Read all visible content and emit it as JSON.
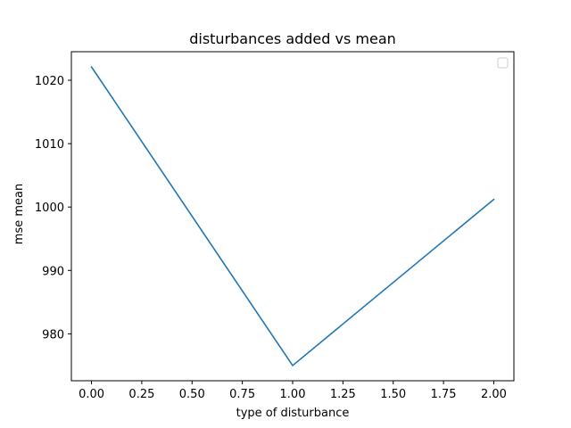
{
  "chart_data": {
    "type": "line",
    "title": "disturbances added vs mean",
    "xlabel": "type of disturbance",
    "ylabel": "mse mean",
    "x": [
      0.0,
      1.0,
      2.0
    ],
    "series": [
      {
        "values": [
          1022.1,
          975.0,
          1001.2
        ],
        "color": "#1f77b4"
      }
    ],
    "xlim": [
      -0.1,
      2.1
    ],
    "ylim": [
      972.6,
      1024.5
    ],
    "xticks": [
      0.0,
      0.25,
      0.5,
      0.75,
      1.0,
      1.25,
      1.5,
      1.75,
      2.0
    ],
    "xtick_labels": [
      "0.00",
      "0.25",
      "0.50",
      "0.75",
      "1.00",
      "1.25",
      "1.50",
      "1.75",
      "2.00"
    ],
    "yticks": [
      980,
      990,
      1000,
      1010,
      1020
    ],
    "ytick_labels": [
      "980",
      "990",
      "1000",
      "1010",
      "1020"
    ],
    "grid": false,
    "legend": {
      "position": "top-right",
      "entries": []
    }
  }
}
